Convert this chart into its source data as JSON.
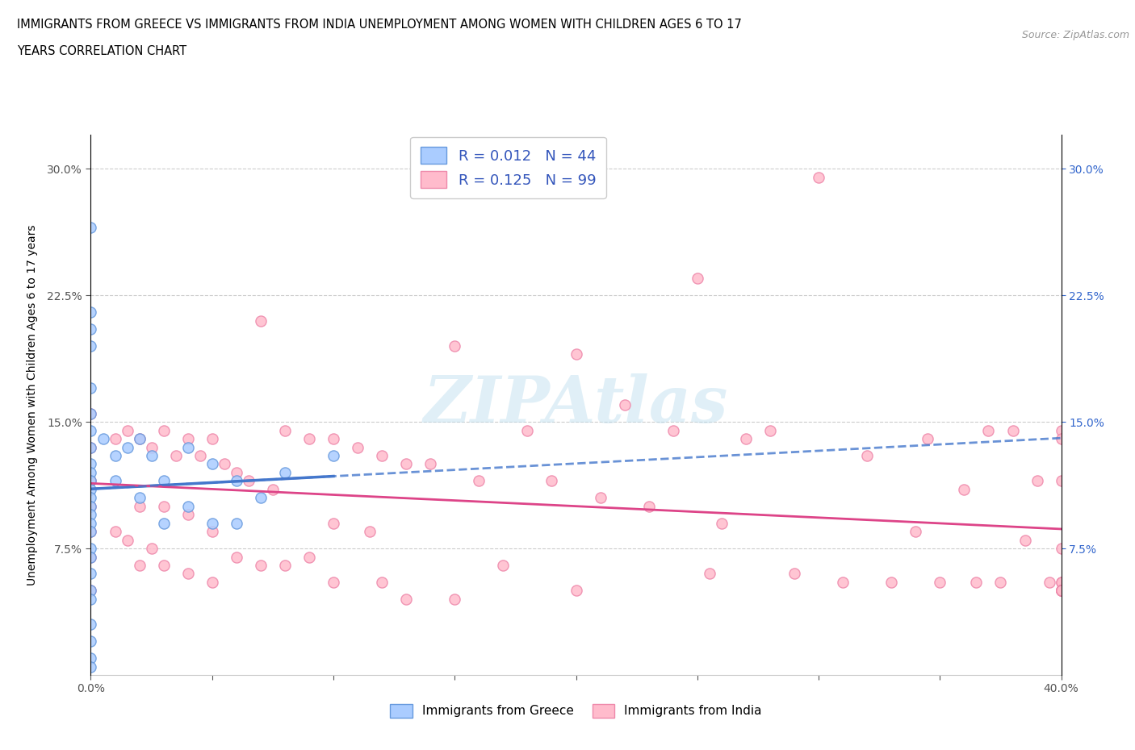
{
  "title_line1": "IMMIGRANTS FROM GREECE VS IMMIGRANTS FROM INDIA UNEMPLOYMENT AMONG WOMEN WITH CHILDREN AGES 6 TO 17",
  "title_line2": "YEARS CORRELATION CHART",
  "source": "Source: ZipAtlas.com",
  "ylabel": "Unemployment Among Women with Children Ages 6 to 17 years",
  "xlim": [
    0.0,
    0.4
  ],
  "ylim": [
    0.0,
    0.32
  ],
  "xticks": [
    0.0,
    0.05,
    0.1,
    0.15,
    0.2,
    0.25,
    0.3,
    0.35,
    0.4
  ],
  "yticks": [
    0.075,
    0.15,
    0.225,
    0.3
  ],
  "xtick_labels_show": [
    "0.0%",
    "",
    "",
    "",
    "",
    "",
    "",
    "",
    "40.0%"
  ],
  "ytick_labels_left": [
    "7.5%",
    "15.0%",
    "22.5%",
    "30.0%"
  ],
  "ytick_labels_right": [
    "7.5%",
    "15.0%",
    "22.5%",
    "30.0%"
  ],
  "greece_face_color": "#aaccff",
  "greece_edge_color": "#6699dd",
  "india_face_color": "#ffbbcc",
  "india_edge_color": "#ee88aa",
  "greece_trend_color": "#4477cc",
  "india_trend_color": "#dd4488",
  "R_greece": "0.012",
  "N_greece": "44",
  "R_india": "0.125",
  "N_india": "99",
  "legend_label_greece": "Immigrants from Greece",
  "legend_label_india": "Immigrants from India",
  "right_ytick_color": "#3366cc",
  "legend_text_color": "#3355bb",
  "greece_x": [
    0.0,
    0.0,
    0.0,
    0.0,
    0.0,
    0.0,
    0.0,
    0.0,
    0.0,
    0.0,
    0.0,
    0.0,
    0.0,
    0.0,
    0.0,
    0.0,
    0.0,
    0.0,
    0.0,
    0.0,
    0.0,
    0.0,
    0.0,
    0.0,
    0.0,
    0.0,
    0.005,
    0.01,
    0.01,
    0.015,
    0.02,
    0.02,
    0.025,
    0.03,
    0.03,
    0.04,
    0.04,
    0.05,
    0.05,
    0.06,
    0.06,
    0.07,
    0.08,
    0.1
  ],
  "greece_y": [
    0.265,
    0.215,
    0.205,
    0.195,
    0.17,
    0.155,
    0.145,
    0.135,
    0.125,
    0.12,
    0.115,
    0.11,
    0.105,
    0.1,
    0.095,
    0.09,
    0.085,
    0.075,
    0.07,
    0.06,
    0.05,
    0.045,
    0.03,
    0.02,
    0.01,
    0.005,
    0.14,
    0.13,
    0.115,
    0.135,
    0.14,
    0.105,
    0.13,
    0.115,
    0.09,
    0.135,
    0.1,
    0.125,
    0.09,
    0.115,
    0.09,
    0.105,
    0.12,
    0.13
  ],
  "india_x": [
    0.0,
    0.0,
    0.0,
    0.0,
    0.0,
    0.0,
    0.0,
    0.01,
    0.01,
    0.015,
    0.015,
    0.02,
    0.02,
    0.02,
    0.025,
    0.025,
    0.03,
    0.03,
    0.03,
    0.035,
    0.04,
    0.04,
    0.04,
    0.045,
    0.05,
    0.05,
    0.05,
    0.055,
    0.06,
    0.06,
    0.065,
    0.07,
    0.07,
    0.075,
    0.08,
    0.08,
    0.09,
    0.09,
    0.1,
    0.1,
    0.1,
    0.11,
    0.115,
    0.12,
    0.12,
    0.13,
    0.13,
    0.14,
    0.15,
    0.15,
    0.16,
    0.17,
    0.18,
    0.19,
    0.2,
    0.2,
    0.21,
    0.22,
    0.23,
    0.24,
    0.25,
    0.255,
    0.26,
    0.27,
    0.28,
    0.29,
    0.3,
    0.31,
    0.32,
    0.33,
    0.34,
    0.345,
    0.35,
    0.36,
    0.365,
    0.37,
    0.375,
    0.38,
    0.385,
    0.39,
    0.395,
    0.4,
    0.4,
    0.4,
    0.4,
    0.4,
    0.4,
    0.4,
    0.4,
    0.4,
    0.4,
    0.4,
    0.4,
    0.4,
    0.4,
    0.4,
    0.4,
    0.4,
    0.4
  ],
  "india_y": [
    0.155,
    0.135,
    0.115,
    0.1,
    0.085,
    0.07,
    0.05,
    0.14,
    0.085,
    0.145,
    0.08,
    0.14,
    0.1,
    0.065,
    0.135,
    0.075,
    0.145,
    0.1,
    0.065,
    0.13,
    0.14,
    0.095,
    0.06,
    0.13,
    0.14,
    0.085,
    0.055,
    0.125,
    0.12,
    0.07,
    0.115,
    0.21,
    0.065,
    0.11,
    0.145,
    0.065,
    0.14,
    0.07,
    0.14,
    0.09,
    0.055,
    0.135,
    0.085,
    0.13,
    0.055,
    0.125,
    0.045,
    0.125,
    0.195,
    0.045,
    0.115,
    0.065,
    0.145,
    0.115,
    0.19,
    0.05,
    0.105,
    0.16,
    0.1,
    0.145,
    0.235,
    0.06,
    0.09,
    0.14,
    0.145,
    0.06,
    0.295,
    0.055,
    0.13,
    0.055,
    0.085,
    0.14,
    0.055,
    0.11,
    0.055,
    0.145,
    0.055,
    0.145,
    0.08,
    0.115,
    0.055,
    0.145,
    0.115,
    0.075,
    0.055,
    0.14,
    0.055,
    0.05,
    0.05,
    0.05,
    0.05,
    0.05,
    0.05,
    0.05,
    0.05,
    0.05,
    0.05,
    0.05,
    0.05
  ]
}
